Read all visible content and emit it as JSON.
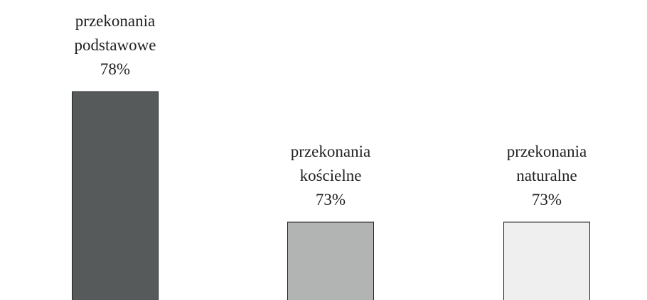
{
  "chart_data": {
    "type": "bar",
    "categories": [
      "przekonania podstawowe",
      "przekonania kościelne",
      "przekonania naturalne"
    ],
    "values": [
      78,
      73,
      73
    ],
    "value_labels": [
      "78%",
      "73%",
      "73%"
    ],
    "colors": [
      "#575a5a",
      "#b2b4b3",
      "#efefef"
    ],
    "ylim": [
      70,
      81.5
    ]
  }
}
